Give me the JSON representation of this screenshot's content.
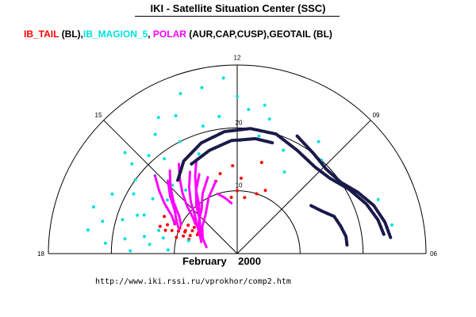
{
  "title": "IKI - Satellite Situation Center (SSC)",
  "colors": {
    "IB_TAIL": "#ff0000",
    "IB_MAGION_5": "#00e0e0",
    "POLAR": "#ff00ff",
    "GEOTAIL": "#1a1a4a",
    "axes": "#000000"
  },
  "legend": [
    {
      "text": "IB_TAIL",
      "color": "#ff0000"
    },
    {
      "text": " (BL),",
      "color": "#000000"
    },
    {
      "text": "IB_MAGION_5",
      "color": "#00e0e0"
    },
    {
      "text": ", ",
      "color": "#000000"
    },
    {
      "text": "POLAR",
      "color": "#ff00ff"
    },
    {
      "text": " (AUR,CAP,CUSP),GEOTAIL (BL)",
      "color": "#000000"
    }
  ],
  "date_label": {
    "month": "February",
    "year": "2000"
  },
  "url": "http://www.iki.rssi.ru/vprokhor/comp2.htm",
  "chart_data": {
    "type": "scatter",
    "coordinate_system": "polar half-disc, angle = local time (hours), radius = distance",
    "angle_tick_labels": [
      "18",
      "15",
      "12",
      "09",
      "06"
    ],
    "radial_tick_labels": [
      "10",
      "20"
    ],
    "radial_range": [
      0,
      30
    ],
    "series": [
      {
        "name": "IB_TAIL",
        "color": "#ff0000",
        "style": "points",
        "points": [
          [
            16.4,
            9
          ],
          [
            16.2,
            8
          ],
          [
            16.6,
            10
          ],
          [
            16.1,
            11
          ],
          [
            16.8,
            9
          ],
          [
            16.3,
            7
          ],
          [
            16.5,
            12
          ],
          [
            16.9,
            8
          ],
          [
            16.0,
            9
          ],
          [
            16.7,
            11
          ],
          [
            16.2,
            13
          ],
          [
            16.4,
            10
          ],
          [
            16.6,
            8
          ],
          [
            16.8,
            12
          ],
          [
            16.1,
            7
          ],
          [
            16.5,
            9
          ],
          [
            17.0,
            10
          ],
          [
            16.3,
            11
          ],
          [
            16.7,
            13
          ],
          [
            15.9,
            8
          ],
          [
            12.8,
            13
          ],
          [
            12.2,
            14
          ],
          [
            11.8,
            12
          ],
          [
            11.0,
            15
          ],
          [
            10.8,
            10
          ],
          [
            11.5,
            9
          ],
          [
            12.4,
            9
          ],
          [
            13.1,
            12
          ],
          [
            12.0,
            10
          ],
          [
            10.4,
            11
          ]
        ]
      },
      {
        "name": "IB_MAGION_5",
        "color": "#00e0e0",
        "style": "points",
        "points": [
          [
            12.8,
            27
          ],
          [
            12.3,
            28
          ],
          [
            13.3,
            27
          ],
          [
            12.0,
            25
          ],
          [
            11.7,
            23
          ],
          [
            11.3,
            24
          ],
          [
            13.6,
            24
          ],
          [
            14.0,
            25
          ],
          [
            12.5,
            22
          ],
          [
            13.0,
            21
          ],
          [
            13.8,
            20
          ],
          [
            14.3,
            23
          ],
          [
            14.5,
            19
          ],
          [
            14.8,
            21
          ],
          [
            15.1,
            18
          ],
          [
            15.3,
            22
          ],
          [
            15.6,
            20
          ],
          [
            16.0,
            19
          ],
          [
            16.3,
            22
          ],
          [
            16.6,
            17
          ],
          [
            16.9,
            19
          ],
          [
            17.1,
            22
          ],
          [
            17.3,
            15
          ],
          [
            17.5,
            18
          ],
          [
            17.7,
            21
          ],
          [
            17.9,
            17
          ],
          [
            17.6,
            14
          ],
          [
            17.2,
            12
          ],
          [
            16.9,
            13
          ],
          [
            16.5,
            16
          ],
          [
            15.8,
            16
          ],
          [
            15.5,
            14
          ],
          [
            14.9,
            15
          ],
          [
            14.6,
            13
          ],
          [
            11.9,
            18
          ],
          [
            11.3,
            19
          ],
          [
            10.4,
            18
          ],
          [
            9.6,
            22
          ],
          [
            9.2,
            20
          ],
          [
            10.0,
            15
          ],
          [
            7.4,
            24
          ],
          [
            6.7,
            25
          ],
          [
            11.1,
            22
          ],
          [
            12.7,
            19
          ],
          [
            13.4,
            17
          ],
          [
            15.2,
            24
          ],
          [
            16.8,
            24
          ],
          [
            17.4,
            24
          ],
          [
            17.8,
            11
          ],
          [
            17.0,
            8
          ]
        ]
      },
      {
        "name": "POLAR",
        "color": "#ff00ff",
        "style": "tracks",
        "tracks": [
          [
            [
              14.2,
              17
            ],
            [
              14.5,
              15
            ],
            [
              14.8,
              13
            ],
            [
              15.1,
              11
            ],
            [
              15.4,
              9
            ],
            [
              15.7,
              8
            ]
          ],
          [
            [
              14.0,
              15
            ],
            [
              14.4,
              13
            ],
            [
              14.8,
              11
            ],
            [
              15.2,
              9
            ],
            [
              15.6,
              8
            ],
            [
              16.0,
              7
            ]
          ],
          [
            [
              13.7,
              14
            ],
            [
              14.2,
              12
            ],
            [
              14.7,
              10
            ],
            [
              15.2,
              8
            ],
            [
              15.8,
              7
            ],
            [
              16.4,
              6
            ]
          ],
          [
            [
              13.4,
              13
            ],
            [
              14.0,
              11
            ],
            [
              14.6,
              9
            ],
            [
              15.3,
              8
            ],
            [
              16.0,
              7
            ],
            [
              16.8,
              6
            ]
          ],
          [
            [
              13.1,
              12
            ],
            [
              13.8,
              10
            ],
            [
              14.6,
              8
            ],
            [
              15.5,
              7
            ],
            [
              16.4,
              6
            ],
            [
              17.2,
              5
            ]
          ],
          [
            [
              14.6,
              17
            ],
            [
              15.0,
              15
            ],
            [
              15.4,
              13
            ],
            [
              15.8,
              11
            ],
            [
              16.2,
              10
            ]
          ],
          [
            [
              14.9,
              16
            ],
            [
              15.3,
              14
            ],
            [
              15.7,
              12
            ],
            [
              16.1,
              11
            ],
            [
              16.5,
              10
            ]
          ],
          [
            [
              13.2,
              10
            ],
            [
              12.8,
              9
            ],
            [
              12.4,
              8
            ]
          ],
          [
            [
              15.1,
              18
            ],
            [
              15.4,
              16
            ],
            [
              15.7,
              14
            ],
            [
              16.0,
              12
            ],
            [
              16.3,
              11
            ]
          ],
          [
            [
              13.6,
              16
            ],
            [
              13.9,
              14
            ],
            [
              14.2,
              12
            ],
            [
              14.5,
              10
            ],
            [
              14.8,
              9
            ]
          ]
        ]
      },
      {
        "name": "GEOTAIL",
        "color": "#1a1a4a",
        "style": "tracks",
        "tracks": [
          [
            [
              14.6,
              15
            ],
            [
              14.0,
              17
            ],
            [
              13.2,
              18.5
            ],
            [
              12.4,
              19.5
            ],
            [
              11.6,
              20
            ],
            [
              10.8,
              20
            ],
            [
              10.0,
              19
            ],
            [
              9.2,
              18.5
            ],
            [
              8.6,
              19
            ],
            [
              8.0,
              20.5
            ],
            [
              7.4,
              22
            ],
            [
              6.9,
              23
            ],
            [
              6.5,
              23.5
            ]
          ],
          [
            [
              10.2,
              21
            ],
            [
              9.5,
              20
            ],
            [
              8.9,
              19.5
            ],
            [
              8.3,
              20
            ],
            [
              7.8,
              21.5
            ],
            [
              7.3,
              23
            ],
            [
              6.8,
              24
            ],
            [
              6.4,
              24.5
            ]
          ],
          [
            [
              8.2,
              14
            ],
            [
              7.8,
              15
            ],
            [
              7.4,
              16.5
            ],
            [
              7.0,
              17
            ],
            [
              6.6,
              17.5
            ],
            [
              6.3,
              17.5
            ]
          ],
          [
            [
              13.8,
              16
            ],
            [
              13.0,
              17
            ],
            [
              12.2,
              18
            ],
            [
              11.4,
              18.5
            ],
            [
              10.8,
              18.5
            ]
          ]
        ]
      }
    ]
  }
}
